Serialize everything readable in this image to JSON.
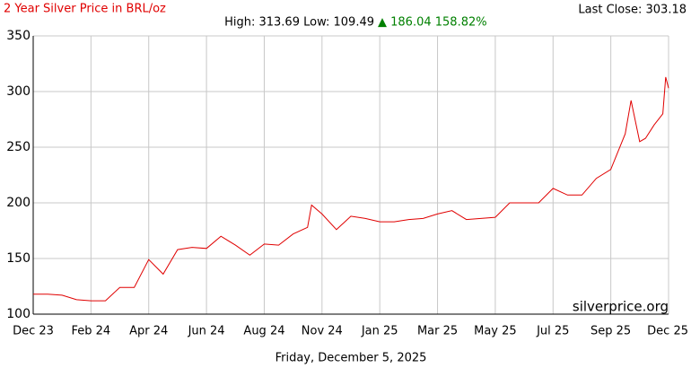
{
  "chart_data": {
    "type": "line",
    "title": "2 Year Silver Price in BRL/oz",
    "high_low": "High: 313.69 Low: 109.49",
    "change": "▲ 186.04 158.82%",
    "last_close": "Last Close: 303.18",
    "watermark": "silverprice.org",
    "date": "Friday, December 5, 2025",
    "xlim": [
      0,
      11
    ],
    "xticks": [
      {
        "value": 0,
        "label": "Dec 23"
      },
      {
        "value": 1,
        "label": "Feb 24"
      },
      {
        "value": 2,
        "label": "Apr 24"
      },
      {
        "value": 3,
        "label": "Jun 24"
      },
      {
        "value": 4,
        "label": "Aug 24"
      },
      {
        "value": 5,
        "label": "Nov 24"
      },
      {
        "value": 6,
        "label": "Jan 25"
      },
      {
        "value": 7,
        "label": "Mar 25"
      },
      {
        "value": 8,
        "label": "May 25"
      },
      {
        "value": 9,
        "label": "Jul 25"
      },
      {
        "value": 10,
        "label": "Sep 25"
      },
      {
        "value": 11,
        "label": "Dec 25"
      }
    ],
    "ylim": [
      100,
      350
    ],
    "yticks": [
      100,
      150,
      200,
      250,
      300,
      350
    ],
    "grid": true,
    "series": [
      {
        "name": "Silver BRL/oz",
        "color": "#e00000",
        "x": [
          0,
          0.25,
          0.5,
          0.75,
          1,
          1.25,
          1.5,
          1.75,
          2,
          2.25,
          2.5,
          2.75,
          3,
          3.25,
          3.5,
          3.75,
          4,
          4.25,
          4.5,
          4.75,
          4.82,
          5,
          5.25,
          5.5,
          5.75,
          6,
          6.25,
          6.5,
          6.75,
          7,
          7.25,
          7.5,
          7.75,
          8,
          8.25,
          8.5,
          8.75,
          9,
          9.25,
          9.5,
          9.75,
          10,
          10.25,
          10.35,
          10.5,
          10.6,
          10.75,
          10.9,
          10.95,
          11
        ],
        "values": [
          118,
          118,
          117,
          113,
          112,
          112,
          124,
          124,
          149,
          136,
          158,
          160,
          159,
          170,
          162,
          153,
          163,
          162,
          172,
          178,
          198,
          190,
          176,
          188,
          186,
          183,
          183,
          185,
          186,
          190,
          193,
          185,
          186,
          187,
          200,
          200,
          200,
          213,
          207,
          207,
          222,
          230,
          262,
          292,
          255,
          258,
          270,
          280,
          313,
          303
        ]
      }
    ]
  }
}
